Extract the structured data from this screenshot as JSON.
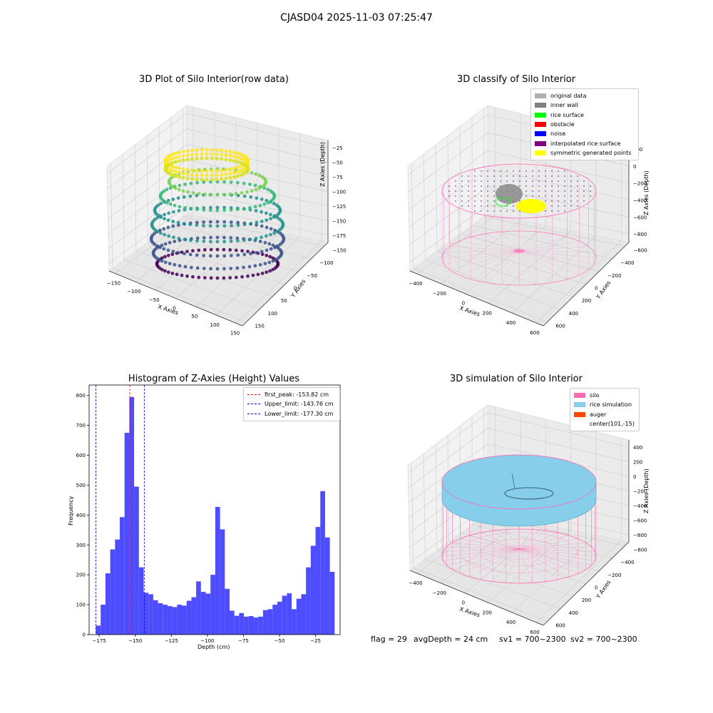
{
  "suptitle": "CJASD04 2025-11-03 07:25:47",
  "footer": {
    "flag": "flag = 29",
    "avg_depth": "avgDepth = 24 cm",
    "sv1": "sv1 = 700~2300",
    "sv2": "sv2 = 700~2300"
  },
  "chart_data": [
    {
      "type": "scatter",
      "title": "3D Plot of Silo Interior(row data)",
      "xlabel": "X Axies",
      "ylabel": "Y Axies",
      "zlabel": "Z Axies (Depth)",
      "x_ticks": [
        "−150",
        "−100",
        "−50",
        "0",
        "50",
        "100",
        "150"
      ],
      "y_ticks": [
        "150",
        "100",
        "50",
        "0",
        "−50",
        "−100",
        "−150"
      ],
      "z_ticks": [
        "−25",
        "−50",
        "−75",
        "−100",
        "−125",
        "−150",
        "−175"
      ],
      "colormap": "viridis",
      "colors": {
        "top": "#fde725",
        "mid": "#21918c",
        "low": "#3b528b",
        "bottom": "#440154"
      }
    },
    {
      "type": "scatter",
      "title": "3D classify of Silo Interior",
      "xlabel": "X Axies",
      "ylabel": "Y Axies",
      "zlabel": "Z Axies (Depth)",
      "x_ticks": [
        "−400",
        "−200",
        "0",
        "200",
        "400",
        "600"
      ],
      "y_ticks": [
        "600",
        "400",
        "200",
        "0",
        "−200",
        "−400",
        "−600"
      ],
      "z_ticks": [
        "200",
        "0",
        "−200",
        "−400",
        "−600",
        "−800"
      ],
      "legend": [
        {
          "label": "original data",
          "color": "#b0b0b0"
        },
        {
          "label": "inner wall",
          "color": "#808080"
        },
        {
          "label": "rice surface",
          "color": "#00ff00"
        },
        {
          "label": "obstacle",
          "color": "#ff0000"
        },
        {
          "label": "noise",
          "color": "#0000ff"
        },
        {
          "label": "interpolated rice surface",
          "color": "#800080"
        },
        {
          "label": "symmetric generated points",
          "color": "#ffff00"
        }
      ],
      "silo_color": "#ff69b4"
    },
    {
      "type": "bar",
      "title": "Histogram of Z-Axies (Height) Values",
      "xlabel": "Depth (cm)",
      "ylabel": "Frequency",
      "bin_start": -177.3,
      "bin_width": 3.31,
      "values": [
        30,
        100,
        205,
        285,
        318,
        393,
        675,
        795,
        495,
        225,
        140,
        135,
        115,
        105,
        100,
        95,
        92,
        100,
        97,
        113,
        125,
        178,
        143,
        137,
        200,
        427,
        352,
        153,
        80,
        63,
        72,
        60,
        62,
        57,
        60,
        82,
        85,
        100,
        110,
        130,
        138,
        85,
        120,
        135,
        225,
        297,
        360,
        480,
        325,
        210
      ],
      "xlim": [
        -182,
        -8
      ],
      "ylim": [
        0,
        835
      ],
      "x_ticks": [
        -175,
        -150,
        -125,
        -100,
        -75,
        -50,
        -25
      ],
      "y_ticks": [
        0,
        100,
        200,
        300,
        400,
        500,
        600,
        700,
        800
      ],
      "bar_color": "#4d4dff",
      "vlines": [
        {
          "label": "first_peak: -153.82 cm",
          "x": -153.82,
          "color": "#ff0000"
        },
        {
          "label": "Upper_limit: -143.76 cm",
          "x": -143.76,
          "color": "#0000cc"
        },
        {
          "label": "Lower_limit: -177.30 cm",
          "x": -177.3,
          "color": "#0000cc"
        }
      ]
    },
    {
      "type": "scatter",
      "title": "3D simulation of Silo Interior",
      "xlabel": "X Axies",
      "ylabel": "Y Axies",
      "zlabel": "Z Axies (Depth)",
      "x_ticks": [
        "−400",
        "−200",
        "0",
        "200",
        "400",
        "600"
      ],
      "y_ticks": [
        "600",
        "400",
        "200",
        "0",
        "−200",
        "−400",
        "−600"
      ],
      "z_ticks": [
        "400",
        "200",
        "0",
        "−200",
        "−400",
        "−600",
        "−800"
      ],
      "legend": [
        {
          "label": "silo",
          "color": "#ff69b4"
        },
        {
          "label": "rice simulation",
          "color": "#87ceeb"
        },
        {
          "label": "auger",
          "color": "#ff4500"
        },
        {
          "label": "center(101,-15)",
          "color": ""
        }
      ]
    }
  ]
}
